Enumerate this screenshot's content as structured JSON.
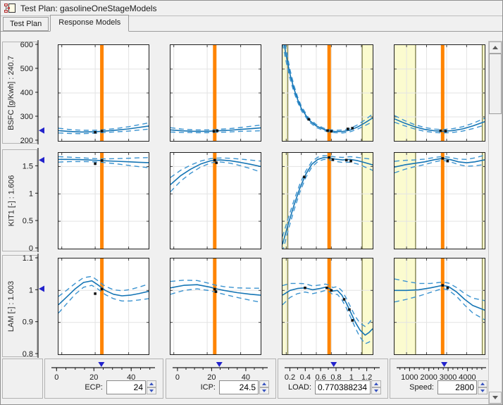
{
  "window": {
    "title": "Test Plan: gasolineOneStageModels"
  },
  "tabs": [
    {
      "label": "Test Plan",
      "active": false
    },
    {
      "label": "Response Models",
      "active": true
    }
  ],
  "colors": {
    "cursor": "#ff8400",
    "curve": "#1575b5",
    "bound": "#3b93d0",
    "band": "#fbfbcf",
    "band_edge": "#83834f",
    "grid": "#e3e3e3",
    "marker": "#2222cc",
    "point": "#111111"
  },
  "chart_data": {
    "type": "line",
    "title": "Response model cross-section plots with confidence bounds",
    "legend": "solid = model prediction, dashed = confidence bounds, orange = current input value, yellow = outside boundary model",
    "responses": [
      {
        "label": "BSFC [g/Kwh] : 240.7",
        "current": 240.7,
        "ymin": 200,
        "ymax": 600,
        "tick_vals": [
          600,
          500,
          400,
          300,
          200
        ],
        "tick_labels": [
          "600",
          "500",
          "400",
          "300",
          "200"
        ],
        "grid": [
          300,
          400,
          500
        ]
      },
      {
        "label": "KIT1 [-] : 1.606",
        "current": 1.606,
        "ymin": 0,
        "ymax": 1.75,
        "tick_vals": [
          1.5,
          1,
          0.5,
          0
        ],
        "tick_labels": [
          "1.5",
          "1",
          "0.5",
          "0"
        ],
        "grid": [
          0.5,
          1,
          1.5
        ]
      },
      {
        "label": "LAM [-] : 1.003",
        "current": 1.003,
        "ymin": 0.8,
        "ymax": 1.1,
        "tick_vals": [
          1.1,
          1,
          0.9,
          0.8
        ],
        "tick_labels": [
          "1.1",
          "1",
          "0.9",
          "0.8"
        ],
        "grid": [
          0.9,
          1
        ]
      }
    ],
    "inputs": [
      {
        "name": "ECP",
        "label": "ECP:",
        "value": 24,
        "value_label": "24",
        "xmin": -2,
        "xmax": 52,
        "tick_vals": [
          0,
          20,
          40
        ],
        "tick_labels": [
          "0",
          "20",
          "40"
        ],
        "minor_step": 5,
        "grid": [
          0,
          20,
          40
        ],
        "bands": []
      },
      {
        "name": "ICP",
        "label": "ICP:",
        "value": 24.5,
        "value_label": "24.5",
        "xmin": -2,
        "xmax": 52,
        "tick_vals": [
          0,
          20,
          40
        ],
        "tick_labels": [
          "0",
          "20",
          "40"
        ],
        "minor_step": 5,
        "grid": [
          0,
          20,
          40
        ],
        "bands": []
      },
      {
        "name": "LOAD",
        "label": "LOAD:",
        "value": 0.770388234,
        "value_label": "0.770388234",
        "xmin": 0.15,
        "xmax": 1.35,
        "tick_vals": [
          0.2,
          0.4,
          0.6,
          0.8,
          1,
          1.2
        ],
        "tick_labels": [
          "0.2",
          "0.4",
          "0.6",
          "0.8",
          "1",
          "1.2"
        ],
        "minor_step": 0.1,
        "grid": [
          0.2,
          0.4,
          0.6,
          0.8,
          1,
          1.2
        ],
        "bands": [
          [
            0.15,
            0.22
          ],
          [
            1.21,
            1.35
          ]
        ]
      },
      {
        "name": "Speed",
        "label": "Speed:",
        "value": 2800,
        "value_label": "2800",
        "xmin": 400,
        "xmax": 4900,
        "tick_vals": [
          1000,
          2000,
          3000,
          4000
        ],
        "tick_labels": [
          "1000",
          "2000",
          "3000",
          "4000"
        ],
        "minor_step": 250,
        "grid": [
          1000,
          2000,
          3000,
          4000
        ],
        "bands": [
          [
            400,
            1450
          ],
          [
            4780,
            4900
          ]
        ]
      }
    ],
    "cells": [
      {
        "row": 0,
        "col": 0,
        "x": [
          -2,
          5,
          12,
          20,
          26,
          33,
          40,
          46,
          52
        ],
        "y": [
          243,
          239,
          237,
          238,
          241,
          245,
          250,
          256,
          262
        ],
        "spread": [
          10,
          8,
          7,
          6,
          6,
          7,
          9,
          11,
          13
        ],
        "points": [
          [
            20,
            236
          ],
          [
            24,
            241
          ]
        ]
      },
      {
        "row": 0,
        "col": 1,
        "x": [
          -2,
          5,
          12,
          20,
          26,
          33,
          40,
          46,
          52
        ],
        "y": [
          246,
          242,
          240,
          240,
          242,
          244,
          248,
          251,
          254
        ],
        "spread": [
          9,
          7,
          6,
          6,
          6,
          7,
          8,
          10,
          12
        ],
        "points": [
          [
            24,
            240
          ],
          [
            26,
            242
          ]
        ]
      },
      {
        "row": 0,
        "col": 2,
        "x": [
          0.15,
          0.2,
          0.25,
          0.3,
          0.35,
          0.4,
          0.5,
          0.6,
          0.7,
          0.77,
          0.85,
          0.95,
          1.05,
          1.15,
          1.25,
          1.35
        ],
        "y": [
          640,
          555,
          478,
          420,
          374,
          336,
          288,
          262,
          248,
          242,
          239,
          239,
          245,
          258,
          276,
          296
        ],
        "spread": [
          34,
          26,
          19,
          14,
          11,
          9,
          7,
          6,
          5,
          5,
          5,
          6,
          7,
          9,
          12,
          16
        ],
        "points": [
          [
            0.5,
            290
          ],
          [
            0.75,
            243
          ],
          [
            0.8,
            240
          ],
          [
            1.02,
            250
          ],
          [
            1.08,
            253
          ]
        ]
      },
      {
        "row": 0,
        "col": 3,
        "x": [
          400,
          900,
          1400,
          1900,
          2400,
          2800,
          3300,
          3800,
          4300,
          4900
        ],
        "y": [
          292,
          274,
          259,
          248,
          242,
          240,
          243,
          250,
          262,
          280
        ],
        "spread": [
          14,
          11,
          9,
          8,
          7,
          7,
          8,
          9,
          11,
          14
        ],
        "points": [
          [
            2700,
            242
          ],
          [
            2950,
            241
          ]
        ]
      },
      {
        "row": 1,
        "col": 0,
        "x": [
          -2,
          5,
          12,
          20,
          26,
          33,
          40,
          46,
          52
        ],
        "y": [
          1.63,
          1.63,
          1.625,
          1.615,
          1.605,
          1.596,
          1.586,
          1.578,
          1.571
        ],
        "spread": [
          0.05,
          0.04,
          0.034,
          0.03,
          0.034,
          0.048,
          0.065,
          0.08,
          0.092
        ],
        "points": [
          [
            20,
            1.552
          ],
          [
            24,
            1.61
          ]
        ]
      },
      {
        "row": 1,
        "col": 1,
        "x": [
          -2,
          4,
          10,
          16,
          22,
          24.5,
          28,
          34,
          40,
          46,
          52
        ],
        "y": [
          1.17,
          1.33,
          1.45,
          1.545,
          1.605,
          1.615,
          1.62,
          1.605,
          1.575,
          1.54,
          1.5
        ],
        "spread": [
          0.13,
          0.1,
          0.075,
          0.055,
          0.04,
          0.036,
          0.036,
          0.046,
          0.06,
          0.078,
          0.1
        ],
        "points": [
          [
            24.5,
            1.617
          ],
          [
            25.5,
            1.568
          ]
        ]
      },
      {
        "row": 1,
        "col": 2,
        "x": [
          0.15,
          0.22,
          0.3,
          0.38,
          0.46,
          0.54,
          0.62,
          0.7,
          0.77,
          0.85,
          0.95,
          1.05,
          1.15,
          1.25,
          1.35
        ],
        "y": [
          0.08,
          0.42,
          0.78,
          1.1,
          1.36,
          1.54,
          1.63,
          1.665,
          1.66,
          1.635,
          1.62,
          1.63,
          1.607,
          1.57,
          1.53
        ],
        "spread": [
          0.14,
          0.11,
          0.09,
          0.075,
          0.06,
          0.05,
          0.04,
          0.035,
          0.035,
          0.04,
          0.046,
          0.05,
          0.06,
          0.08,
          0.1
        ],
        "points": [
          [
            0.44,
            1.31
          ],
          [
            0.77,
            1.665
          ],
          [
            0.82,
            1.625
          ],
          [
            1.0,
            1.618
          ],
          [
            1.06,
            1.6
          ]
        ]
      },
      {
        "row": 1,
        "col": 3,
        "x": [
          400,
          900,
          1400,
          1900,
          2400,
          2800,
          3200,
          3600,
          4000,
          4400,
          4900
        ],
        "y": [
          1.49,
          1.53,
          1.558,
          1.585,
          1.625,
          1.65,
          1.625,
          1.585,
          1.568,
          1.585,
          1.622
        ],
        "spread": [
          0.105,
          0.082,
          0.062,
          0.05,
          0.04,
          0.035,
          0.04,
          0.05,
          0.062,
          0.072,
          0.085
        ],
        "points": [
          [
            2800,
            1.648
          ],
          [
            3050,
            1.6
          ]
        ]
      },
      {
        "row": 2,
        "col": 0,
        "x": [
          -2,
          3,
          8,
          13,
          18,
          22,
          26,
          31,
          36,
          41,
          46,
          52
        ],
        "y": [
          0.955,
          0.98,
          1.005,
          1.025,
          1.03,
          1.016,
          1.0,
          0.988,
          0.983,
          0.985,
          0.99,
          0.997
        ],
        "spread": [
          0.026,
          0.021,
          0.017,
          0.015,
          0.014,
          0.013,
          0.013,
          0.014,
          0.016,
          0.018,
          0.02,
          0.023
        ],
        "points": [
          [
            20,
            0.99
          ],
          [
            24,
            1.004
          ]
        ]
      },
      {
        "row": 2,
        "col": 1,
        "x": [
          -2,
          6,
          14,
          22,
          24.5,
          30,
          38,
          46,
          52
        ],
        "y": [
          1.008,
          1.016,
          1.018,
          1.01,
          1.006,
          1.0,
          0.993,
          0.988,
          0.985
        ],
        "spread": [
          0.02,
          0.016,
          0.013,
          0.011,
          0.011,
          0.012,
          0.015,
          0.019,
          0.022
        ],
        "points": [
          [
            24.5,
            1.004
          ],
          [
            25.2,
            0.996
          ]
        ]
      },
      {
        "row": 2,
        "col": 2,
        "x": [
          0.15,
          0.25,
          0.35,
          0.45,
          0.55,
          0.65,
          0.72,
          0.77,
          0.82,
          0.88,
          0.94,
          1.0,
          1.06,
          1.12,
          1.18,
          1.25,
          1.3,
          1.35
        ],
        "y": [
          0.985,
          1.0,
          1.006,
          1.008,
          1.002,
          1.006,
          1.01,
          1.007,
          0.998,
          1.0,
          0.985,
          0.96,
          0.93,
          0.9,
          0.876,
          0.86,
          0.868,
          0.88
        ],
        "spread": [
          0.03,
          0.022,
          0.016,
          0.013,
          0.012,
          0.011,
          0.01,
          0.01,
          0.011,
          0.012,
          0.014,
          0.015,
          0.016,
          0.018,
          0.022,
          0.027,
          0.03,
          0.033
        ],
        "points": [
          [
            0.45,
            1.008
          ],
          [
            0.74,
            1.008
          ],
          [
            0.8,
            1.0
          ],
          [
            0.97,
            0.972
          ],
          [
            1.04,
            0.94
          ],
          [
            1.08,
            0.906
          ]
        ]
      },
      {
        "row": 2,
        "col": 3,
        "x": [
          400,
          1000,
          1600,
          2200,
          2800,
          3100,
          3500,
          3900,
          4300,
          4900
        ],
        "y": [
          1.0,
          1.0,
          1.002,
          1.008,
          1.016,
          1.012,
          0.995,
          0.972,
          0.953,
          0.938
        ],
        "spread": [
          0.036,
          0.028,
          0.02,
          0.014,
          0.01,
          0.011,
          0.014,
          0.018,
          0.023,
          0.03
        ],
        "points": [
          [
            2800,
            1.016
          ],
          [
            3050,
            1.008
          ]
        ]
      }
    ]
  }
}
